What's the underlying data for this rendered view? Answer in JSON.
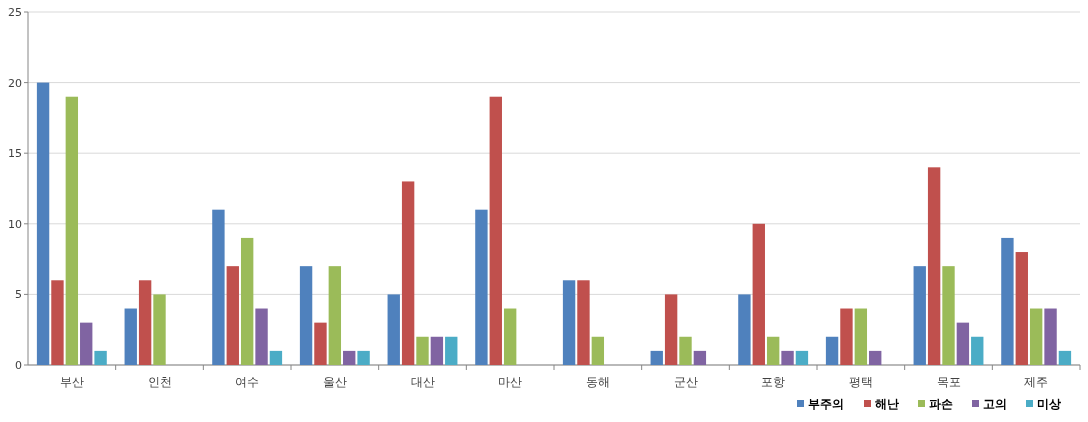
{
  "chart_data": {
    "type": "bar",
    "categories": [
      "부산",
      "인천",
      "여수",
      "울산",
      "대산",
      "마산",
      "동해",
      "군산",
      "포항",
      "평택",
      "목포",
      "제주"
    ],
    "series": [
      {
        "name": "부주의",
        "color": "#4f81bd",
        "values": [
          20,
          4,
          11,
          7,
          5,
          11,
          6,
          1,
          5,
          2,
          7,
          9
        ]
      },
      {
        "name": "해난",
        "color": "#c0504d",
        "values": [
          6,
          6,
          7,
          3,
          13,
          19,
          6,
          5,
          10,
          4,
          14,
          8
        ]
      },
      {
        "name": "파손",
        "color": "#9bbb59",
        "values": [
          19,
          5,
          9,
          7,
          2,
          4,
          2,
          2,
          2,
          4,
          7,
          4
        ]
      },
      {
        "name": "고의",
        "color": "#8064a2",
        "values": [
          3,
          null,
          4,
          1,
          2,
          null,
          null,
          1,
          1,
          1,
          3,
          4
        ]
      },
      {
        "name": "미상",
        "color": "#4bacc6",
        "values": [
          1,
          null,
          1,
          1,
          2,
          null,
          null,
          null,
          1,
          null,
          2,
          1
        ]
      }
    ],
    "ylim": [
      0,
      25
    ],
    "yticks": [
      0,
      5,
      10,
      15,
      20,
      25
    ],
    "grid": "y",
    "legend": "bottom right"
  }
}
